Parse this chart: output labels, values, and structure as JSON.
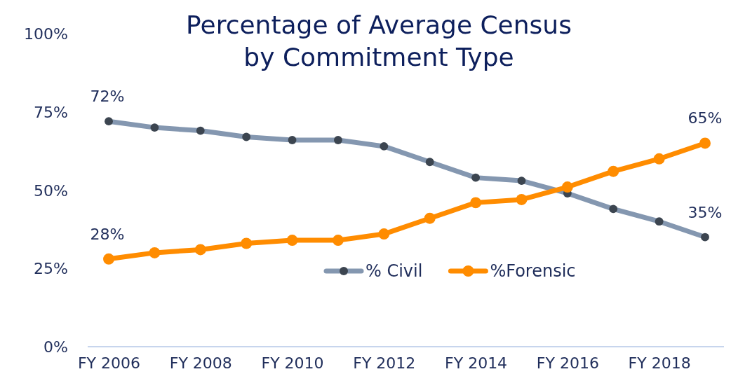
{
  "chart_data": {
    "type": "line",
    "title": "Percentage of Average Census by Commitment Type",
    "categories": [
      "FY 2006",
      null,
      "FY 2008",
      null,
      "FY 2010",
      null,
      "FY 2012",
      null,
      "FY 2014",
      null,
      "FY 2016",
      null,
      "FY 2018",
      null
    ],
    "series": [
      {
        "name": "% Civil",
        "color": "#8497b0",
        "values": [
          72,
          70,
          69,
          67,
          66,
          66,
          64,
          59,
          54,
          53,
          49,
          44,
          40,
          35
        ],
        "value_labels": [
          "72%",
          null,
          null,
          null,
          null,
          null,
          null,
          null,
          null,
          null,
          null,
          null,
          null,
          "35%"
        ]
      },
      {
        "name": "%Forensic",
        "color": "#ff8c00",
        "values": [
          28,
          30,
          31,
          33,
          34,
          34,
          36,
          41,
          46,
          47,
          51,
          56,
          60,
          65
        ],
        "value_labels": [
          "28%",
          null,
          null,
          null,
          null,
          null,
          null,
          null,
          null,
          null,
          null,
          null,
          null,
          "65%"
        ]
      }
    ],
    "ylim": [
      0,
      100
    ],
    "yticks": [
      {
        "value": 0,
        "label": "0%"
      },
      {
        "value": 25,
        "label": "25%"
      },
      {
        "value": 50,
        "label": "50%"
      },
      {
        "value": 75,
        "label": "75%"
      },
      {
        "value": 100,
        "label": "100%"
      }
    ],
    "grid": false,
    "legend": "bottom right",
    "marker": "circle",
    "line_style": "solid"
  }
}
